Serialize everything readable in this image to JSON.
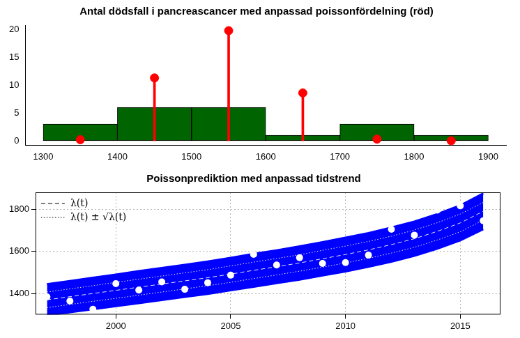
{
  "chart_data": [
    {
      "type": "histogram",
      "title": "Antal dödsfall i pancreascancer med anpassad poissonfördelning (röd)",
      "bins": [
        1300,
        1400,
        1500,
        1600,
        1700,
        1800,
        1900
      ],
      "counts": [
        3,
        6,
        6,
        1,
        3,
        1
      ],
      "color": "#006400",
      "fit": {
        "type": "lollipop",
        "color": "#ff0000",
        "marker": "circle",
        "x": [
          1350,
          1450,
          1550,
          1650,
          1750,
          1850
        ],
        "values": [
          0.2,
          11.3,
          19.8,
          8.6,
          0.3,
          0.0
        ]
      },
      "xlim": [
        1276,
        1924
      ],
      "xticks": [
        1300,
        1400,
        1500,
        1600,
        1700,
        1800,
        1900
      ],
      "ylim": [
        -0.8,
        20.8
      ],
      "yticks": [
        0,
        5,
        10,
        15,
        20
      ],
      "grid": false
    },
    {
      "type": "line",
      "title": "Poissonprediktion med anpassad tidstrend",
      "x": [
        1997,
        1998,
        1999,
        2000,
        2001,
        2002,
        2003,
        2004,
        2005,
        2006,
        2007,
        2008,
        2009,
        2010,
        2011,
        2012,
        2013,
        2014,
        2015,
        2016
      ],
      "points": {
        "type": "scatter",
        "color": "#ffffff",
        "marker": "circle",
        "values": [
          1384,
          1364,
          1325,
          1447,
          1416,
          1455,
          1420,
          1451,
          1487,
          1586,
          1535,
          1570,
          1543,
          1547,
          1582,
          1705,
          1677,
          1796,
          1816,
          1745
        ]
      },
      "band": {
        "color": "#0000ff",
        "lower": [
          1296,
          1311,
          1325,
          1340,
          1354,
          1369,
          1384,
          1398,
          1415,
          1432,
          1449,
          1466,
          1486,
          1505,
          1527,
          1551,
          1579,
          1613,
          1652,
          1705
        ],
        "upper": [
          1444,
          1459,
          1475,
          1490,
          1506,
          1521,
          1536,
          1552,
          1569,
          1588,
          1605,
          1624,
          1644,
          1665,
          1687,
          1713,
          1741,
          1777,
          1818,
          1875
        ]
      },
      "series": [
        {
          "name": "λ(t)",
          "line_style": "dashed",
          "color": "#e6e6e6",
          "values": [
            1370,
            1385,
            1400,
            1415,
            1430,
            1445,
            1460,
            1475,
            1492,
            1510,
            1527,
            1545,
            1565,
            1585,
            1607,
            1632,
            1660,
            1695,
            1735,
            1790
          ]
        },
        {
          "name": "λ(t) ± √λ(t)",
          "line_style": "dotted",
          "color": "#e6e6e6",
          "upper": [
            1407,
            1422,
            1437,
            1453,
            1468,
            1483,
            1498,
            1513,
            1531,
            1549,
            1566,
            1584,
            1605,
            1625,
            1647,
            1672,
            1701,
            1736,
            1777,
            1832
          ],
          "lower": [
            1333,
            1348,
            1363,
            1377,
            1392,
            1407,
            1422,
            1437,
            1453,
            1471,
            1488,
            1506,
            1525,
            1545,
            1567,
            1592,
            1619,
            1654,
            1693,
            1748
          ]
        }
      ],
      "legend": "top-left",
      "xlim": [
        1996.5,
        2016.75
      ],
      "xticks": [
        2000,
        2005,
        2010,
        2015
      ],
      "ylim": [
        1300,
        1880
      ],
      "yticks": [
        1400,
        1600,
        1800
      ],
      "grid": true
    }
  ]
}
